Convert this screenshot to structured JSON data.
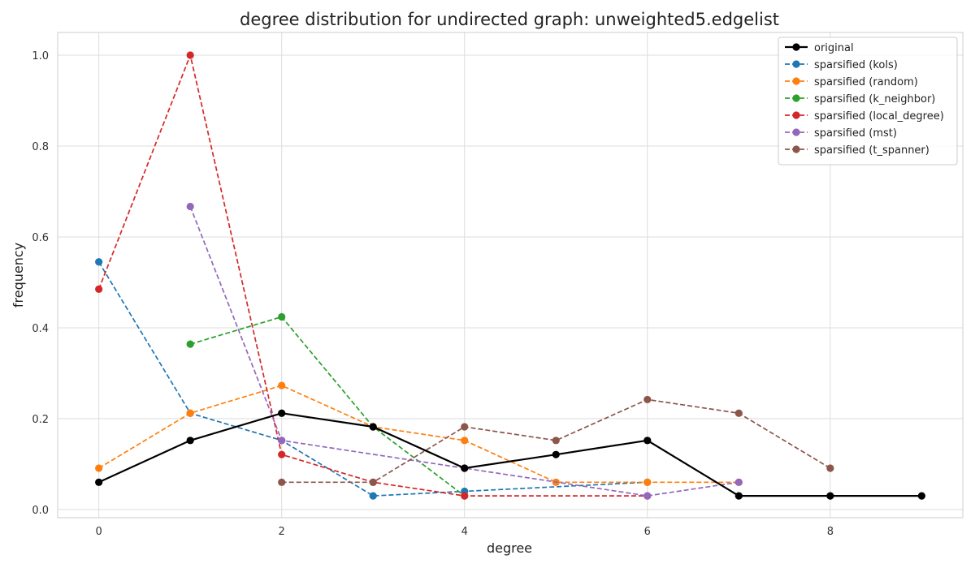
{
  "chart_data": {
    "type": "line",
    "title": "degree distribution for undirected graph: unweighted5.edgelist",
    "xlabel": "degree",
    "ylabel": "frequency",
    "xlim": [
      -0.45,
      9.45
    ],
    "ylim": [
      -0.018,
      1.05
    ],
    "xticks": [
      0,
      2,
      4,
      6,
      8
    ],
    "yticks": [
      0.0,
      0.2,
      0.4,
      0.6,
      0.8,
      1.0
    ],
    "grid": true,
    "legend_position": "top-right",
    "series": [
      {
        "name": "original",
        "color": "#000000",
        "style": "solid",
        "points": [
          [
            0,
            0.06
          ],
          [
            1,
            0.152
          ],
          [
            2,
            0.212
          ],
          [
            3,
            0.182
          ],
          [
            4,
            0.091
          ],
          [
            5,
            0.121
          ],
          [
            6,
            0.152
          ],
          [
            7,
            0.03
          ],
          [
            8,
            0.03
          ],
          [
            9,
            0.03
          ]
        ]
      },
      {
        "name": "sparsified (kols)",
        "color": "#1f77b4",
        "style": "dashed",
        "points": [
          [
            0,
            0.545
          ],
          [
            1,
            0.212
          ],
          [
            2,
            0.152
          ],
          [
            3,
            0.03
          ],
          [
            4,
            0.04
          ],
          [
            6,
            0.06
          ]
        ]
      },
      {
        "name": "sparsified (random)",
        "color": "#ff7f0e",
        "style": "dashed",
        "points": [
          [
            0,
            0.091
          ],
          [
            1,
            0.212
          ],
          [
            2,
            0.273
          ],
          [
            3,
            0.182
          ],
          [
            4,
            0.152
          ],
          [
            5,
            0.06
          ],
          [
            6,
            0.06
          ],
          [
            7,
            0.06
          ]
        ]
      },
      {
        "name": "sparsified (k_neighbor)",
        "color": "#2ca02c",
        "style": "dashed",
        "points": [
          [
            1,
            0.364
          ],
          [
            2,
            0.424
          ],
          [
            3,
            0.182
          ],
          [
            4,
            0.03
          ]
        ]
      },
      {
        "name": "sparsified (local_degree)",
        "color": "#d62728",
        "style": "dashed",
        "points": [
          [
            0,
            0.485
          ],
          [
            1,
            1.0
          ],
          [
            2,
            0.121
          ],
          [
            3,
            0.06
          ],
          [
            4,
            0.03
          ],
          [
            6,
            0.03
          ]
        ]
      },
      {
        "name": "sparsified (mst)",
        "color": "#9467bd",
        "style": "dashed",
        "points": [
          [
            1,
            0.667
          ],
          [
            2,
            0.152
          ],
          [
            4,
            0.091
          ],
          [
            6,
            0.03
          ],
          [
            7,
            0.06
          ]
        ]
      },
      {
        "name": "sparsified (t_spanner)",
        "color": "#8c564b",
        "style": "dashed",
        "points": [
          [
            2,
            0.06
          ],
          [
            3,
            0.06
          ],
          [
            4,
            0.182
          ],
          [
            5,
            0.152
          ],
          [
            6,
            0.242
          ],
          [
            7,
            0.212
          ],
          [
            8,
            0.091
          ]
        ]
      }
    ]
  }
}
